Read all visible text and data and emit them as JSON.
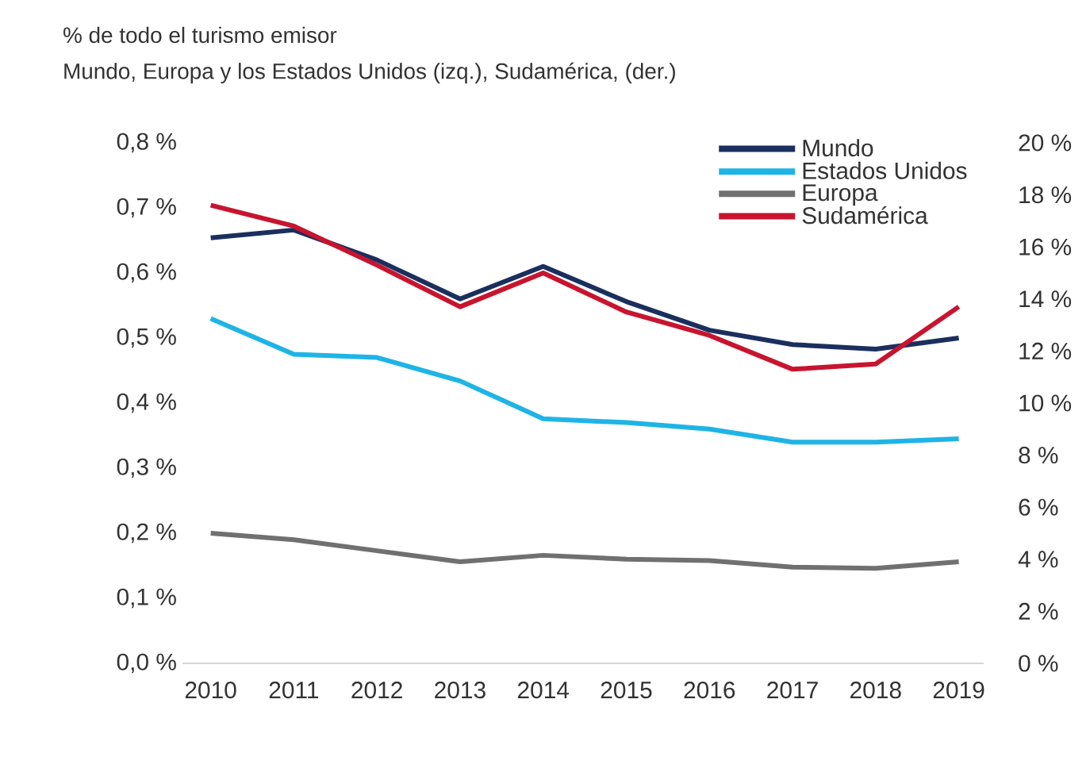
{
  "chart_data": {
    "type": "line",
    "title": "% de todo el turismo emisor",
    "subtitle": "Mundo, Europa y los Estados Unidos (izq.), Sudamérica, (der.)",
    "categories": [
      "2010",
      "2011",
      "2012",
      "2013",
      "2014",
      "2015",
      "2016",
      "2017",
      "2018",
      "2019"
    ],
    "series": [
      {
        "name": "Mundo",
        "color": "#1b2f5e",
        "values": [
          0.654,
          0.666,
          0.62,
          0.56,
          0.61,
          0.556,
          0.512,
          0.49,
          0.483,
          0.5
        ]
      },
      {
        "name": "Estados Unidos",
        "color": "#1fb4e6",
        "values": [
          0.53,
          0.475,
          0.47,
          0.434,
          0.376,
          0.37,
          0.36,
          0.34,
          0.34,
          0.345
        ]
      },
      {
        "name": "Europa",
        "color": "#707070",
        "values": [
          0.2,
          0.19,
          0.173,
          0.156,
          0.166,
          0.16,
          0.158,
          0.148,
          0.146,
          0.156
        ]
      },
      {
        "name": "Sudamérica",
        "color": "#c8142e",
        "axis": "y2",
        "values": [
          17.6,
          16.8,
          15.3,
          13.7,
          15.0,
          13.5,
          12.6,
          11.3,
          11.5,
          13.7
        ]
      }
    ],
    "ylim": [
      0,
      0.8
    ],
    "yticks": [
      {
        "value": 0,
        "label": "0,0 %"
      },
      {
        "value": 0.1,
        "label": "0,1 %"
      },
      {
        "value": 0.2,
        "label": "0,2 %"
      },
      {
        "value": 0.3,
        "label": "0,3 %"
      },
      {
        "value": 0.4,
        "label": "0,4 %"
      },
      {
        "value": 0.5,
        "label": "0,5 %"
      },
      {
        "value": 0.6,
        "label": "0,6 %"
      },
      {
        "value": 0.7,
        "label": "0,7 %"
      },
      {
        "value": 0.8,
        "label": "0,8 %"
      }
    ],
    "y2lim": [
      0,
      20
    ],
    "y2ticks": [
      {
        "value": 0,
        "label": "0 %"
      },
      {
        "value": 2,
        "label": "2 %"
      },
      {
        "value": 4,
        "label": "4 %"
      },
      {
        "value": 6,
        "label": "6 %"
      },
      {
        "value": 8,
        "label": "8 %"
      },
      {
        "value": 10,
        "label": "10 %"
      },
      {
        "value": 12,
        "label": "12 %"
      },
      {
        "value": 14,
        "label": "14 %"
      },
      {
        "value": 16,
        "label": "16 %"
      },
      {
        "value": 18,
        "label": "18 %"
      },
      {
        "value": 20,
        "label": "20 %"
      }
    ],
    "legend": "top right"
  }
}
